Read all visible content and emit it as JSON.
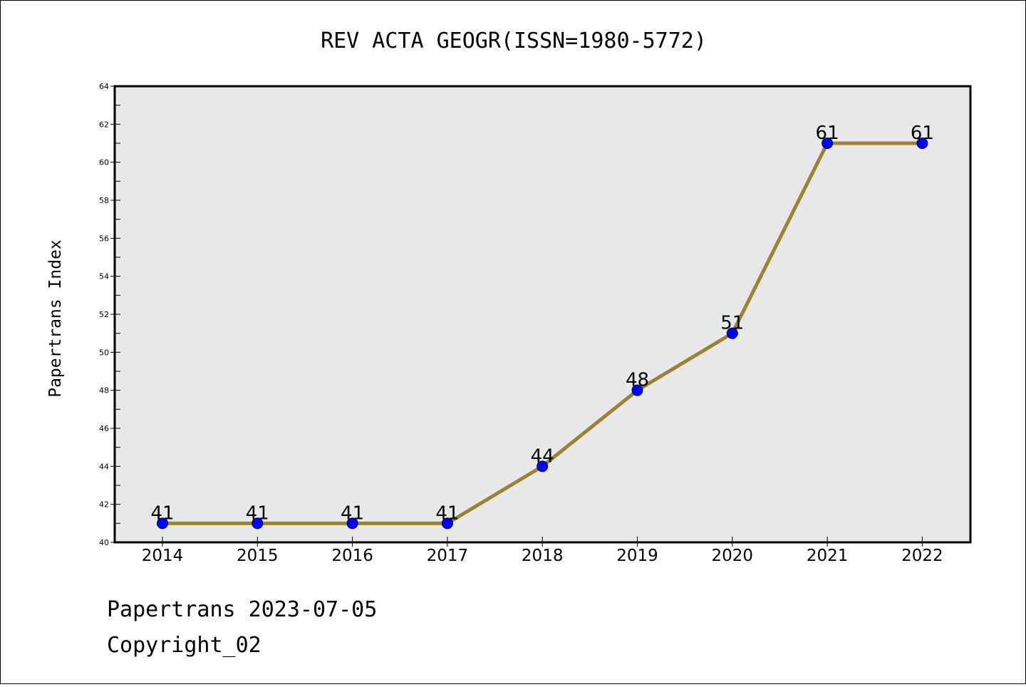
{
  "chart_data": {
    "type": "line",
    "title": "REV ACTA GEOGR(ISSN=1980-5772)",
    "xlabel": "",
    "ylabel": "Papertrans Index",
    "categories": [
      "2014",
      "2015",
      "2016",
      "2017",
      "2018",
      "2019",
      "2020",
      "2021",
      "2022"
    ],
    "series": [
      {
        "values": [
          41,
          41,
          41,
          41,
          44,
          48,
          51,
          61,
          61
        ]
      }
    ],
    "data_labels": [
      "41",
      "41",
      "41",
      "41",
      "44",
      "48",
      "51",
      "61",
      "61"
    ],
    "ylim": [
      40,
      64
    ],
    "y_ticks": [
      "40",
      "42",
      "44",
      "46",
      "48",
      "50",
      "52",
      "54",
      "56",
      "58",
      "60",
      "62",
      "64"
    ],
    "grid": false,
    "legend": "none",
    "colors": {
      "plot_background": "#e8e8e8",
      "line": "#9b8235",
      "marker": "#0000ff"
    }
  },
  "footer": {
    "line1": "Papertrans 2023-07-05",
    "line2": "Copyright_02"
  }
}
